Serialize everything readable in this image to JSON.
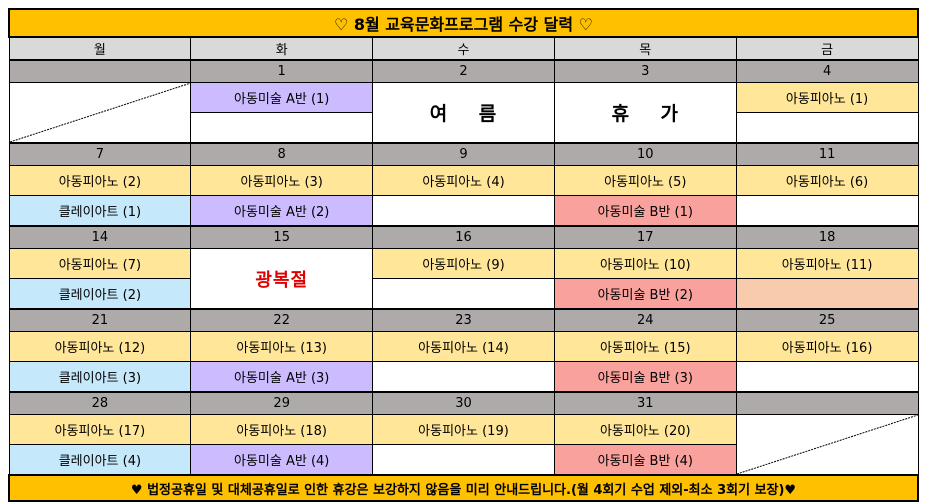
{
  "title": "♡ 8월 교육문화프로그램 수강 달력 ♡",
  "weekdays": [
    "월",
    "화",
    "수",
    "목",
    "금"
  ],
  "colors": {
    "piano": "#ffe699",
    "clay": "#c5e8fa",
    "artA": "#ccbcff",
    "artB": "#f8a19d",
    "peach": "#f8cbad",
    "gold": "#ffc000"
  },
  "weeks": [
    {
      "days": [
        {
          "date": "",
          "merged": {
            "type": "diag"
          }
        },
        {
          "date": "1",
          "slots": [
            {
              "label": "아동미술 A반 (1)",
              "kind": "artA"
            },
            {
              "label": "",
              "kind": "empty"
            }
          ]
        },
        {
          "date": "2",
          "merged": {
            "type": "holiday",
            "label": "여    름"
          }
        },
        {
          "date": "3",
          "merged": {
            "type": "holiday",
            "label": "휴    가"
          }
        },
        {
          "date": "4",
          "slots": [
            {
              "label": "아동피아노 (1)",
              "kind": "piano"
            },
            {
              "label": "",
              "kind": "empty"
            }
          ]
        }
      ]
    },
    {
      "days": [
        {
          "date": "7",
          "slots": [
            {
              "label": "아동피아노 (2)",
              "kind": "piano"
            },
            {
              "label": "클레이아트 (1)",
              "kind": "clay"
            }
          ]
        },
        {
          "date": "8",
          "slots": [
            {
              "label": "아동피아노 (3)",
              "kind": "piano"
            },
            {
              "label": "아동미술 A반 (2)",
              "kind": "artA"
            }
          ]
        },
        {
          "date": "9",
          "slots": [
            {
              "label": "아동피아노 (4)",
              "kind": "piano"
            },
            {
              "label": "",
              "kind": "empty"
            }
          ]
        },
        {
          "date": "10",
          "slots": [
            {
              "label": "아동피아노 (5)",
              "kind": "piano"
            },
            {
              "label": "아동미술 B반 (1)",
              "kind": "artB"
            }
          ]
        },
        {
          "date": "11",
          "slots": [
            {
              "label": "아동피아노 (6)",
              "kind": "piano"
            },
            {
              "label": "",
              "kind": "empty"
            }
          ]
        }
      ]
    },
    {
      "days": [
        {
          "date": "14",
          "slots": [
            {
              "label": "아동피아노 (7)",
              "kind": "piano"
            },
            {
              "label": "클레이아트 (2)",
              "kind": "clay"
            }
          ]
        },
        {
          "date": "15",
          "merged": {
            "type": "redholiday",
            "label": "광복절"
          }
        },
        {
          "date": "16",
          "slots": [
            {
              "label": "아동피아노 (9)",
              "kind": "piano"
            },
            {
              "label": "",
              "kind": "empty"
            }
          ]
        },
        {
          "date": "17",
          "slots": [
            {
              "label": "아동피아노 (10)",
              "kind": "piano"
            },
            {
              "label": "아동미술 B반 (2)",
              "kind": "artB"
            }
          ]
        },
        {
          "date": "18",
          "slots": [
            {
              "label": "아동피아노 (11)",
              "kind": "piano"
            },
            {
              "label": "",
              "kind": "peach"
            }
          ]
        }
      ]
    },
    {
      "days": [
        {
          "date": "21",
          "slots": [
            {
              "label": "아동피아노 (12)",
              "kind": "piano"
            },
            {
              "label": "클레이아트 (3)",
              "kind": "clay"
            }
          ]
        },
        {
          "date": "22",
          "slots": [
            {
              "label": "아동피아노 (13)",
              "kind": "piano"
            },
            {
              "label": "아동미술 A반 (3)",
              "kind": "artA"
            }
          ]
        },
        {
          "date": "23",
          "slots": [
            {
              "label": "아동피아노 (14)",
              "kind": "piano"
            },
            {
              "label": "",
              "kind": "empty"
            }
          ]
        },
        {
          "date": "24",
          "slots": [
            {
              "label": "아동피아노 (15)",
              "kind": "piano"
            },
            {
              "label": "아동미술 B반 (3)",
              "kind": "artB"
            }
          ]
        },
        {
          "date": "25",
          "slots": [
            {
              "label": "아동피아노 (16)",
              "kind": "piano"
            },
            {
              "label": "",
              "kind": "empty"
            }
          ]
        }
      ]
    },
    {
      "days": [
        {
          "date": "28",
          "slots": [
            {
              "label": "아동피아노 (17)",
              "kind": "piano"
            },
            {
              "label": "클레이아트 (4)",
              "kind": "clay"
            }
          ]
        },
        {
          "date": "29",
          "slots": [
            {
              "label": "아동피아노 (18)",
              "kind": "piano"
            },
            {
              "label": "아동미술 A반 (4)",
              "kind": "artA"
            }
          ]
        },
        {
          "date": "30",
          "slots": [
            {
              "label": "아동피아노 (19)",
              "kind": "piano"
            },
            {
              "label": "",
              "kind": "empty"
            }
          ]
        },
        {
          "date": "31",
          "slots": [
            {
              "label": "아동피아노 (20)",
              "kind": "piano"
            },
            {
              "label": "아동미술 B반 (4)",
              "kind": "artB"
            }
          ]
        },
        {
          "date": "",
          "merged": {
            "type": "diag2"
          }
        }
      ]
    }
  ],
  "footer": "♥ 법정공휴일 및 대체공휴일로 인한 휴강은 보강하지 않음을 미리 안내드립니다.(월 4회기 수업 제외-최소 3회기 보장)♥"
}
